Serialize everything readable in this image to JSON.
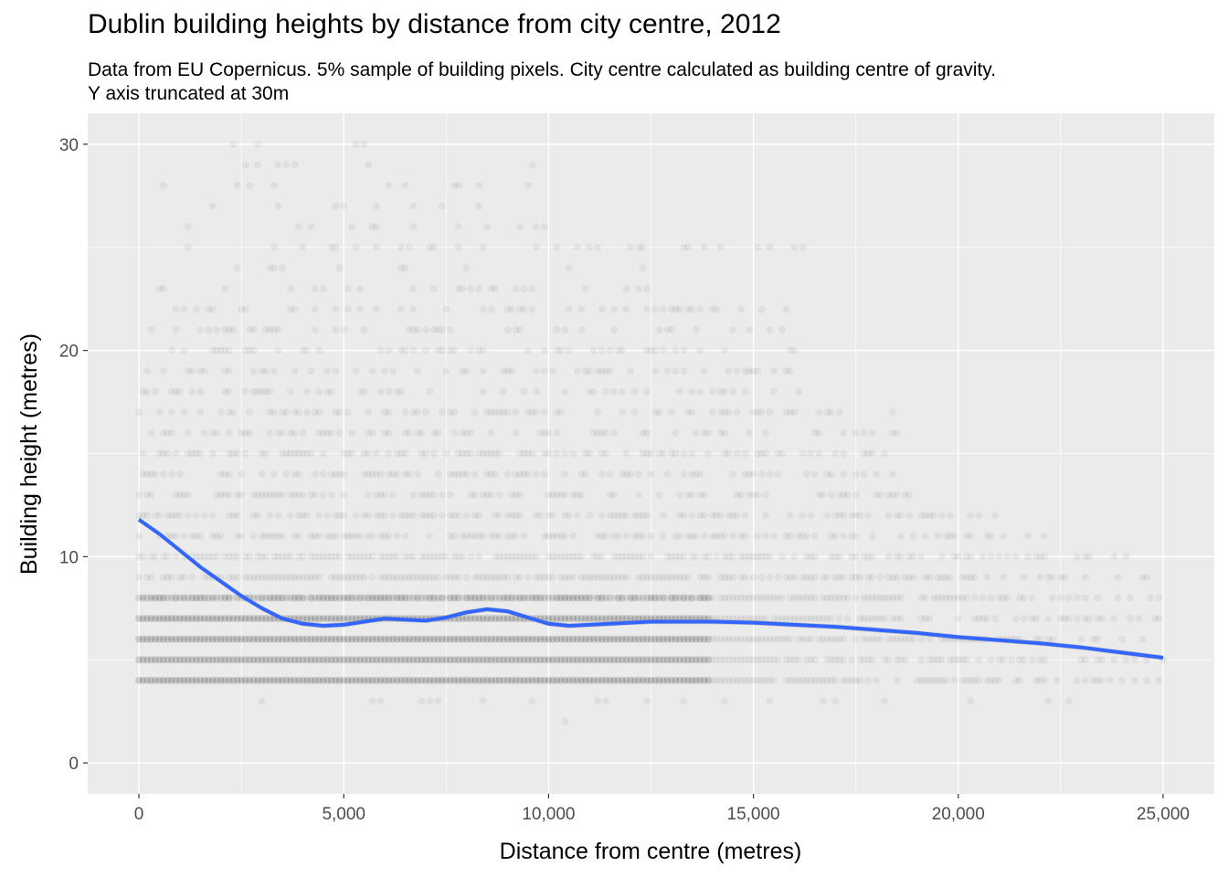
{
  "chart_data": {
    "type": "scatter",
    "title": "Dublin building heights by distance from city centre, 2012",
    "subtitle_lines": [
      "Data from EU Copernicus. 5% sample of building pixels. City centre calculated as building centre of gravity.",
      "Y axis truncated at 30m"
    ],
    "xlabel": "Distance from centre (metres)",
    "ylabel": "Building height (metres)",
    "xlim": [
      -1250,
      26250
    ],
    "ylim": [
      -1.5,
      31.5
    ],
    "x_ticks": [
      0,
      5000,
      10000,
      15000,
      20000,
      25000
    ],
    "x_tick_labels": [
      "0",
      "5,000",
      "10,000",
      "15,000",
      "20,000",
      "25,000"
    ],
    "y_ticks": [
      0,
      10,
      20,
      30
    ],
    "y_tick_labels": [
      "0",
      "10",
      "20",
      "30"
    ],
    "grid": true,
    "background": "#ebebeb",
    "point_color": "#000000",
    "point_alpha": 0.05,
    "smooth_color": "#3366ff",
    "height_bands": [
      {
        "y": 2,
        "x_range": [
          10300,
          10700
        ],
        "density": 0.6
      },
      {
        "y": 3,
        "x_range": [
          1500,
          23800
        ],
        "density": 0.15
      },
      {
        "y": 4,
        "x_range": [
          0,
          25000
        ],
        "density": 1.0
      },
      {
        "y": 5,
        "x_range": [
          0,
          25000
        ],
        "density": 1.0
      },
      {
        "y": 6,
        "x_range": [
          0,
          25000
        ],
        "density": 1.0
      },
      {
        "y": 7,
        "x_range": [
          0,
          25000
        ],
        "density": 1.0
      },
      {
        "y": 8,
        "x_range": [
          0,
          25000
        ],
        "density": 0.9
      },
      {
        "y": 9,
        "x_range": [
          0,
          25000
        ],
        "density": 0.8
      },
      {
        "y": 10,
        "x_range": [
          0,
          25000
        ],
        "density": 0.75
      },
      {
        "y": 11,
        "x_range": [
          0,
          24500
        ],
        "density": 0.6
      },
      {
        "y": 12,
        "x_range": [
          0,
          21000
        ],
        "density": 0.55
      },
      {
        "y": 13,
        "x_range": [
          0,
          19000
        ],
        "density": 0.5
      },
      {
        "y": 14,
        "x_range": [
          0,
          18500
        ],
        "density": 0.45
      },
      {
        "y": 15,
        "x_range": [
          0,
          18500
        ],
        "density": 0.45
      },
      {
        "y": 16,
        "x_range": [
          0,
          18500
        ],
        "density": 0.4
      },
      {
        "y": 17,
        "x_range": [
          0,
          18500
        ],
        "density": 0.4
      },
      {
        "y": 18,
        "x_range": [
          0,
          16200
        ],
        "density": 0.35
      },
      {
        "y": 19,
        "x_range": [
          0,
          16200
        ],
        "density": 0.3
      },
      {
        "y": 20,
        "x_range": [
          0,
          16200
        ],
        "density": 0.3
      },
      {
        "y": 21,
        "x_range": [
          0,
          16200
        ],
        "density": 0.25
      },
      {
        "y": 22,
        "x_range": [
          0,
          16200
        ],
        "density": 0.2
      },
      {
        "y": 23,
        "x_range": [
          0,
          13000
        ],
        "density": 0.2
      },
      {
        "y": 24,
        "x_range": [
          0,
          12500
        ],
        "density": 0.15
      },
      {
        "y": 25,
        "x_range": [
          0,
          16200
        ],
        "density": 0.12
      },
      {
        "y": 26,
        "x_range": [
          0,
          10300
        ],
        "density": 0.12
      },
      {
        "y": 27,
        "x_range": [
          0,
          10000
        ],
        "density": 0.1
      },
      {
        "y": 28,
        "x_range": [
          0,
          10000
        ],
        "density": 0.1
      },
      {
        "y": 29,
        "x_range": [
          0,
          11500
        ],
        "density": 0.08
      },
      {
        "y": 30,
        "x_range": [
          0,
          9300
        ],
        "density": 0.06
      }
    ],
    "smooth_line": {
      "x": [
        0,
        500,
        1000,
        1500,
        2000,
        2500,
        3000,
        3500,
        4000,
        4500,
        5000,
        5500,
        6000,
        6500,
        7000,
        7500,
        8000,
        8500,
        9000,
        9500,
        10000,
        10500,
        11000,
        11500,
        12000,
        12500,
        13000,
        14000,
        15000,
        16000,
        17000,
        18000,
        19000,
        20000,
        21000,
        22000,
        23000,
        24000,
        25000
      ],
      "y": [
        11.8,
        11.1,
        10.3,
        9.5,
        8.8,
        8.1,
        7.5,
        7.0,
        6.75,
        6.65,
        6.7,
        6.85,
        7.0,
        6.95,
        6.9,
        7.05,
        7.3,
        7.45,
        7.35,
        7.05,
        6.75,
        6.65,
        6.7,
        6.75,
        6.8,
        6.85,
        6.85,
        6.85,
        6.8,
        6.7,
        6.6,
        6.45,
        6.3,
        6.1,
        5.95,
        5.8,
        5.6,
        5.35,
        5.1
      ]
    }
  }
}
